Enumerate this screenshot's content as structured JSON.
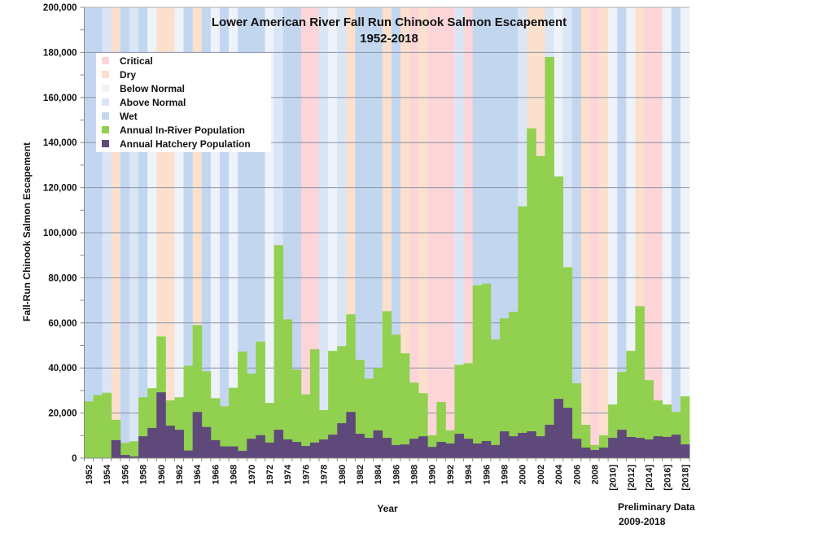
{
  "chart_data": {
    "type": "bar",
    "title": "Lower American River Fall Run Chinook Salmon Escapement",
    "subtitle": "1952-2018",
    "xlabel": "Year",
    "ylabel": "Fall-Run Chinook  Salmon Escapement",
    "ylim": [
      0,
      200000
    ],
    "yticks": [
      0,
      20000,
      40000,
      60000,
      80000,
      100000,
      120000,
      140000,
      160000,
      180000,
      200000
    ],
    "ytick_labels": [
      "0",
      "20,000",
      "40,000",
      "60,000",
      "80,000",
      "100,000",
      "120,000",
      "140,000",
      "160,000",
      "180,000",
      "200,000"
    ],
    "grid": true,
    "legend_position": "top-left",
    "note": [
      "Preliminary Data",
      "2009-2018"
    ],
    "years": [
      1952,
      1953,
      1954,
      1955,
      1956,
      1957,
      1958,
      1959,
      1960,
      1961,
      1962,
      1963,
      1964,
      1965,
      1966,
      1967,
      1968,
      1969,
      1970,
      1971,
      1972,
      1973,
      1974,
      1975,
      1976,
      1977,
      1978,
      1979,
      1980,
      1981,
      1982,
      1983,
      1984,
      1985,
      1986,
      1987,
      1988,
      1989,
      1990,
      1991,
      1992,
      1993,
      1994,
      1995,
      1996,
      1997,
      1998,
      1999,
      2000,
      2001,
      2002,
      2003,
      2004,
      2005,
      2006,
      2007,
      2008,
      2009,
      2010,
      2011,
      2012,
      2013,
      2014,
      2015,
      2016,
      2017,
      2018
    ],
    "xtick_labels": [
      "1952",
      "1954",
      "1956",
      "1958",
      "1960",
      "1962",
      "1964",
      "1966",
      "1968",
      "1970",
      "1972",
      "1974",
      "1976",
      "1978",
      "1980",
      "1982",
      "1984",
      "1986",
      "1988",
      "1990",
      "1992",
      "1994",
      "1996",
      "1998",
      "2000",
      "2002",
      "2004",
      "2006",
      "2008",
      "[2010]",
      "[2012]",
      "[2014]",
      "[2016]",
      "[2018]"
    ],
    "water_year_types": [
      "Wet",
      "Wet",
      "Above Normal",
      "Dry",
      "Wet",
      "Above Normal",
      "Wet",
      "Below Normal",
      "Dry",
      "Dry",
      "Below Normal",
      "Wet",
      "Dry",
      "Wet",
      "Below Normal",
      "Wet",
      "Below Normal",
      "Wet",
      "Wet",
      "Wet",
      "Below Normal",
      "Above Normal",
      "Wet",
      "Wet",
      "Critical",
      "Critical",
      "Above Normal",
      "Below Normal",
      "Above Normal",
      "Dry",
      "Wet",
      "Wet",
      "Wet",
      "Dry",
      "Wet",
      "Dry",
      "Critical",
      "Dry",
      "Critical",
      "Critical",
      "Critical",
      "Above Normal",
      "Critical",
      "Wet",
      "Wet",
      "Wet",
      "Wet",
      "Wet",
      "Above Normal",
      "Dry",
      "Dry",
      "Above Normal",
      "Below Normal",
      "Above Normal",
      "Wet",
      "Dry",
      "Critical",
      "Dry",
      "Below Normal",
      "Wet",
      "Below Normal",
      "Dry",
      "Critical",
      "Critical",
      "Below Normal",
      "Wet",
      "Below Normal"
    ],
    "series": [
      {
        "name": "Annual In-River Population",
        "note": "total stacked height (in-river + hatchery)",
        "values": [
          25200,
          28000,
          29000,
          17000,
          6800,
          7500,
          27000,
          31000,
          54000,
          25600,
          27000,
          41000,
          59000,
          38500,
          26600,
          23000,
          31200,
          47300,
          37500,
          51700,
          24500,
          94500,
          61600,
          39300,
          28300,
          48300,
          21300,
          47600,
          49700,
          63800,
          43600,
          35300,
          40000,
          65200,
          54800,
          46500,
          33500,
          28800,
          10100,
          24900,
          12300,
          41400,
          42100,
          76700,
          77400,
          52600,
          62000,
          64900,
          111700,
          146300,
          134000,
          178000,
          125000,
          84700,
          33200,
          14800,
          5800,
          10100,
          23800,
          38200,
          47600,
          67400,
          34600,
          25600,
          23800,
          20500,
          27400
        ]
      },
      {
        "name": "Annual Hatchery Population",
        "values": [
          0,
          0,
          0,
          8000,
          1400,
          700,
          9700,
          13400,
          29200,
          14400,
          12600,
          3400,
          20500,
          13800,
          8000,
          5200,
          5200,
          3200,
          8600,
          10200,
          6900,
          12600,
          8300,
          7200,
          5400,
          6900,
          8300,
          10400,
          15500,
          20500,
          10800,
          9000,
          12300,
          9000,
          5800,
          6100,
          8600,
          9700,
          5000,
          7200,
          6500,
          10800,
          8600,
          6500,
          7600,
          5800,
          11900,
          9700,
          11200,
          11900,
          9700,
          14800,
          26300,
          22300,
          8600,
          4700,
          3600,
          4700,
          9000,
          12600,
          9400,
          9000,
          8300,
          9700,
          9400,
          10400,
          6100
        ]
      }
    ],
    "legend": [
      {
        "label": "Critical",
        "color": "#fcd5d8"
      },
      {
        "label": "Dry",
        "color": "#fbe0cd"
      },
      {
        "label": "Below Normal",
        "color": "#eef2f9"
      },
      {
        "label": "Above Normal",
        "color": "#dae6f6"
      },
      {
        "label": "Wet",
        "color": "#c2d7ef"
      },
      {
        "label": "Annual In-River Population",
        "color": "#92d050"
      },
      {
        "label": "Annual Hatchery Population",
        "color": "#5f497a"
      }
    ]
  }
}
